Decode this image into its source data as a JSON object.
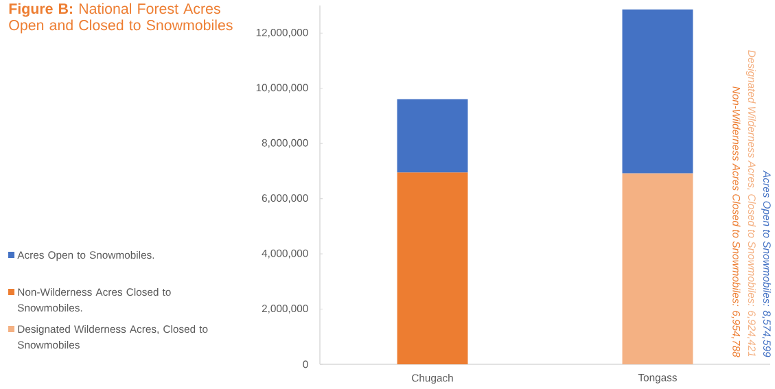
{
  "chart_data": {
    "type": "bar",
    "title": "**Figure B:** National Forest Acres Open and Closed to Snowmobiles",
    "categories": [
      "Chugach",
      "Tongass"
    ],
    "series": [
      {
        "name": "Designated Wilderness Acres, Closed to Snowmobiles",
        "color": "#f4b183",
        "values": [
          null,
          6924421
        ]
      },
      {
        "name": "Non-Wilderness Acres Closed to Snowmobiles.",
        "color": "#ed7d31",
        "values": [
          6954788,
          null
        ]
      },
      {
        "name": "Acres Open to Snowmobiles.",
        "color": "#4472c4",
        "values": [
          2650000,
          5930000
        ]
      }
    ],
    "stacked": true,
    "ylim": [
      0,
      13000000
    ],
    "yticks": [
      0,
      {
        "value": 2000000,
        "label": "2,000,000"
      },
      {
        "value": 4000000,
        "label": "4,000,000"
      },
      {
        "value": 6000000,
        "label": "6,000,000"
      },
      {
        "value": 8000000,
        "label": "8,000,000"
      },
      {
        "value": 10000000,
        "label": "10,000,000"
      },
      {
        "value": 12000000,
        "label": "12,000,000"
      }
    ],
    "legend": "left",
    "annotations": [
      "Acres Open to Snowmobiles: 8,574,599",
      "Designated Wilderness Acres, Closed to Snowmobiles: 6,924,421",
      "Non-Wilderness Acres Closed to Snowmobiles: 6,954,788"
    ]
  }
}
